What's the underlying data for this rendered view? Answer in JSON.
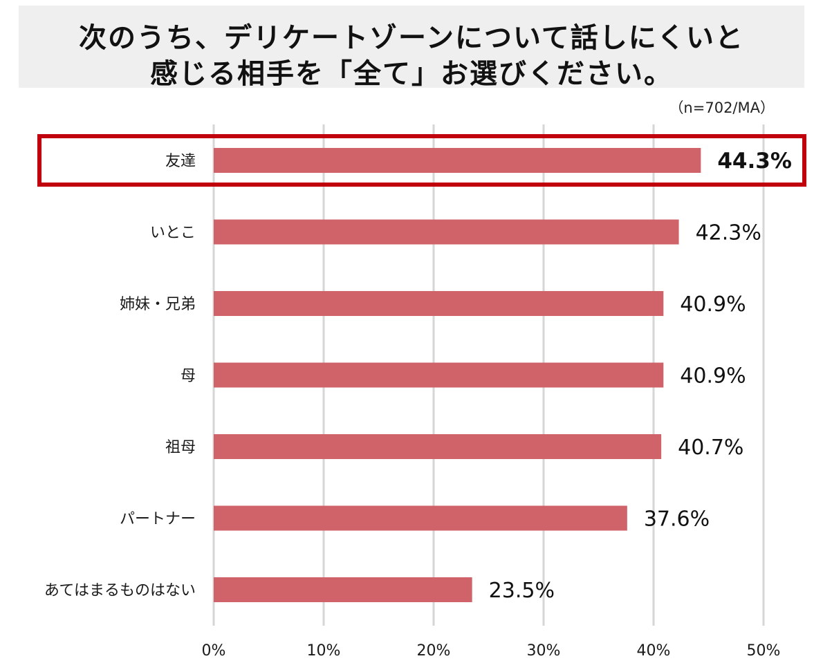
{
  "title": {
    "line1": "次のうち、デリケートゾーンについて話しにくいと",
    "line2": "感じる相手を「全て」お選びください。"
  },
  "sample_note": "（n=702/MA）",
  "colors": {
    "bar": "#d0636a",
    "highlight_border": "#c0000c",
    "grid": "#d6d6d6",
    "title_bg": "#efefef"
  },
  "chart_data": {
    "type": "bar",
    "orientation": "horizontal",
    "categories": [
      "友達",
      "いとこ",
      "姉妹・兄弟",
      "母",
      "祖母",
      "パートナー",
      "あてはまるものはない"
    ],
    "values": [
      44.3,
      42.3,
      40.9,
      40.9,
      40.7,
      37.6,
      23.5
    ],
    "value_labels": [
      "44.3%",
      "42.3%",
      "40.9%",
      "40.9%",
      "40.7%",
      "37.6%",
      "23.5%"
    ],
    "highlighted_category": "友達",
    "xlim": [
      0,
      50
    ],
    "xticks": [
      0,
      10,
      20,
      30,
      40,
      50
    ],
    "xtick_labels": [
      "0%",
      "10%",
      "20%",
      "30%",
      "40%",
      "50%"
    ],
    "grid": true,
    "legend": "none"
  }
}
